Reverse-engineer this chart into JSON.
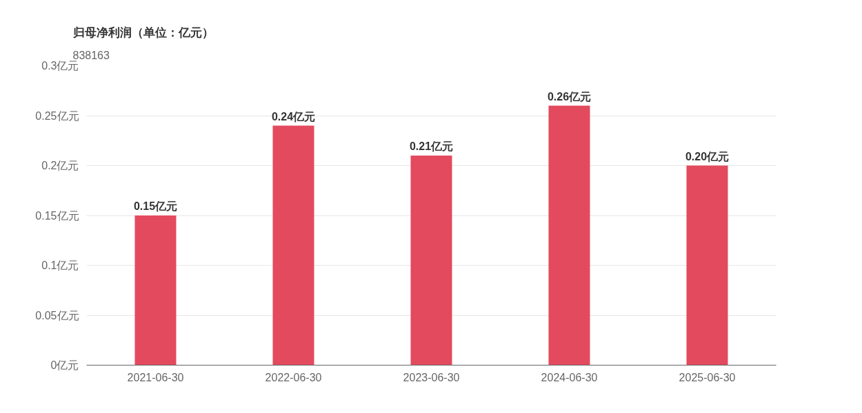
{
  "chart_data": {
    "type": "bar",
    "title": "归母净利润（单位：亿元）",
    "subtitle": "838163",
    "categories": [
      "2021-06-30",
      "2022-06-30",
      "2023-06-30",
      "2024-06-30",
      "2025-06-30"
    ],
    "values": [
      0.15,
      0.24,
      0.21,
      0.26,
      0.2
    ],
    "value_labels": [
      "0.15亿元",
      "0.24亿元",
      "0.21亿元",
      "0.26亿元",
      "0.20亿元"
    ],
    "color": "#e34a5e",
    "ylim": [
      0,
      0.3
    ],
    "yticks": [
      {
        "value": 0,
        "label": "0亿元"
      },
      {
        "value": 0.05,
        "label": "0.05亿元"
      },
      {
        "value": 0.1,
        "label": "0.1亿元"
      },
      {
        "value": 0.15,
        "label": "0.15亿元"
      },
      {
        "value": 0.2,
        "label": "0.2亿元"
      },
      {
        "value": 0.25,
        "label": "0.25亿元"
      },
      {
        "value": 0.3,
        "label": "0.3亿元"
      }
    ],
    "grid": "y"
  }
}
